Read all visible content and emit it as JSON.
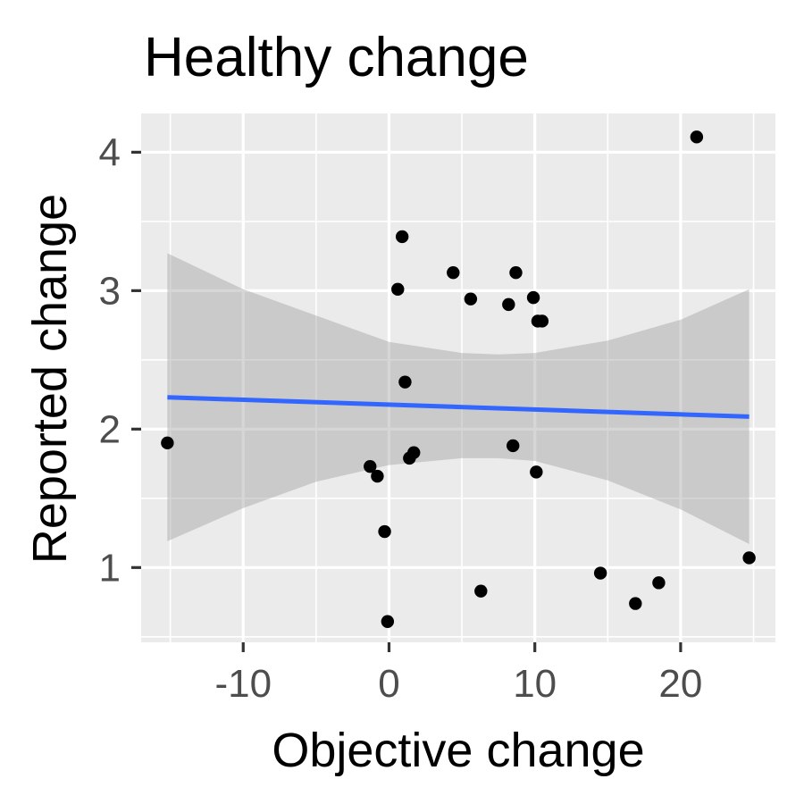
{
  "chart_data": {
    "type": "scatter",
    "title": "Healthy change",
    "xlabel": "Objective change",
    "ylabel": "Reported change",
    "xlim": [
      -17.0,
      26.5
    ],
    "ylim": [
      0.46,
      4.28
    ],
    "x_ticks": [
      -10,
      0,
      10,
      20
    ],
    "x_tick_labels": [
      "-10",
      "0",
      "10",
      "20"
    ],
    "y_ticks": [
      1,
      2,
      3,
      4
    ],
    "y_tick_labels": [
      "1",
      "2",
      "3",
      "4"
    ],
    "grid": true,
    "points": [
      {
        "x": -15.2,
        "y": 1.9
      },
      {
        "x": -1.3,
        "y": 1.73
      },
      {
        "x": -0.8,
        "y": 1.66
      },
      {
        "x": -0.3,
        "y": 1.26
      },
      {
        "x": -0.1,
        "y": 0.61
      },
      {
        "x": 0.6,
        "y": 3.01
      },
      {
        "x": 0.9,
        "y": 3.39
      },
      {
        "x": 1.1,
        "y": 2.34
      },
      {
        "x": 1.4,
        "y": 1.79
      },
      {
        "x": 1.7,
        "y": 1.83
      },
      {
        "x": 4.4,
        "y": 3.13
      },
      {
        "x": 5.6,
        "y": 2.94
      },
      {
        "x": 6.3,
        "y": 0.83
      },
      {
        "x": 8.2,
        "y": 2.9
      },
      {
        "x": 8.5,
        "y": 1.88
      },
      {
        "x": 8.7,
        "y": 3.13
      },
      {
        "x": 9.9,
        "y": 2.95
      },
      {
        "x": 10.1,
        "y": 1.69
      },
      {
        "x": 10.2,
        "y": 2.78
      },
      {
        "x": 10.5,
        "y": 2.78
      },
      {
        "x": 14.5,
        "y": 0.96
      },
      {
        "x": 16.9,
        "y": 0.74
      },
      {
        "x": 18.5,
        "y": 0.89
      },
      {
        "x": 21.1,
        "y": 4.11
      },
      {
        "x": 24.7,
        "y": 1.07
      }
    ],
    "trend_line": {
      "x": [
        -15.2,
        24.7
      ],
      "y": [
        2.23,
        2.09
      ]
    },
    "confidence_band": {
      "x": [
        -15.2,
        -10,
        -5,
        0,
        5,
        7.5,
        10,
        15,
        20,
        24.7
      ],
      "lower": [
        1.19,
        1.43,
        1.62,
        1.74,
        1.79,
        1.79,
        1.77,
        1.63,
        1.42,
        1.17
      ],
      "upper": [
        3.27,
        3.01,
        2.82,
        2.63,
        2.55,
        2.54,
        2.55,
        2.64,
        2.79,
        3.01
      ]
    },
    "colors": {
      "panel": "#ebebeb",
      "grid": "#ffffff",
      "points": "#000000",
      "line": "#3366ff",
      "ribbon": "#999999"
    }
  }
}
